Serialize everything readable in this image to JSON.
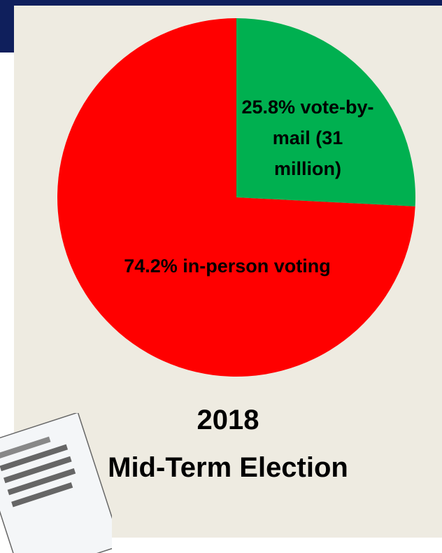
{
  "chart_data": {
    "type": "pie",
    "title": "2018",
    "subtitle": "Mid-Term Election",
    "values": [
      25.8,
      74.2
    ],
    "value_labels": [
      "25.8% vote-by-mail (31 million)",
      "74.2%  in-person voting"
    ],
    "colors": [
      "#00b050",
      "#ff0000"
    ]
  }
}
